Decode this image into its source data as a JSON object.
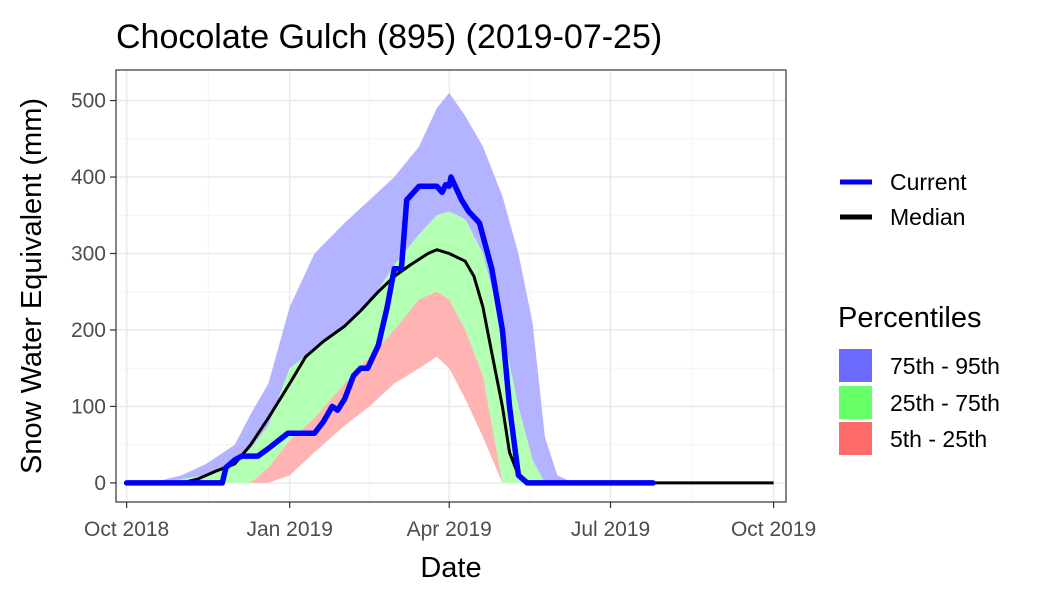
{
  "chart_data": {
    "type": "area",
    "title": "Chocolate Gulch (895) (2019-07-25)",
    "xlabel": "Date",
    "ylabel": "Snow Water Equivalent (mm)",
    "xlim": [
      "2018-09-25",
      "2019-10-08"
    ],
    "ylim": [
      -25,
      540
    ],
    "x_ticks": [
      "2018-10-01",
      "2019-01-01",
      "2019-04-01",
      "2019-07-01",
      "2019-10-01"
    ],
    "x_tick_labels": [
      "Oct 2018",
      "Jan 2019",
      "Apr 2019",
      "Jul 2019",
      "Oct 2019"
    ],
    "y_ticks": [
      0,
      100,
      200,
      300,
      400,
      500
    ],
    "y_tick_labels": [
      "0",
      "100",
      "200",
      "300",
      "400",
      "500"
    ],
    "grid": true,
    "legend_position": "right",
    "colors": {
      "current": "#0000ff",
      "median": "#000000",
      "p75_95": "#6b6bff",
      "p25_75": "#66ff66",
      "p5_25": "#ff6b6b",
      "band_75_95": "#b3b3ff",
      "band_25_75": "#b3ffb3",
      "band_5_25": "#ffb3b3"
    },
    "legend_lines": [
      {
        "key": "current",
        "label": "Current"
      },
      {
        "key": "median",
        "label": "Median"
      }
    ],
    "legend_title": "Percentiles",
    "legend_fills": [
      {
        "key": "p75_95",
        "label": "75th - 95th"
      },
      {
        "key": "p25_75",
        "label": "25th - 75th"
      },
      {
        "key": "p5_25",
        "label": "5th - 25th"
      }
    ],
    "percentile_bands": {
      "dates": [
        "2018-10-01",
        "2018-10-15",
        "2018-11-01",
        "2018-11-15",
        "2018-12-01",
        "2018-12-10",
        "2018-12-20",
        "2019-01-01",
        "2019-01-15",
        "2019-02-01",
        "2019-02-15",
        "2019-03-01",
        "2019-03-15",
        "2019-03-25",
        "2019-04-01",
        "2019-04-10",
        "2019-04-20",
        "2019-05-01",
        "2019-05-10",
        "2019-05-18",
        "2019-05-25",
        "2019-06-01",
        "2019-06-10"
      ],
      "p5": [
        0,
        0,
        0,
        0,
        0,
        0,
        0,
        10,
        40,
        75,
        100,
        130,
        150,
        165,
        150,
        110,
        60,
        0,
        0,
        0,
        0,
        0,
        0
      ],
      "p25": [
        0,
        0,
        0,
        0,
        0,
        0,
        20,
        55,
        85,
        130,
        165,
        200,
        240,
        250,
        240,
        200,
        140,
        0,
        0,
        0,
        0,
        0,
        0
      ],
      "p75": [
        0,
        0,
        5,
        10,
        25,
        45,
        75,
        150,
        175,
        205,
        235,
        285,
        325,
        350,
        355,
        345,
        300,
        200,
        100,
        30,
        0,
        0,
        0
      ],
      "p95": [
        0,
        0,
        10,
        25,
        50,
        90,
        130,
        230,
        300,
        340,
        370,
        400,
        440,
        490,
        510,
        480,
        440,
        375,
        300,
        210,
        60,
        10,
        0
      ]
    },
    "series": [
      {
        "name": "Current",
        "x": [
          "2018-10-01",
          "2018-11-01",
          "2018-11-15",
          "2018-11-24",
          "2018-11-26",
          "2018-12-01",
          "2018-12-05",
          "2018-12-14",
          "2018-12-20",
          "2018-12-31",
          "2019-01-01",
          "2019-01-15",
          "2019-01-20",
          "2019-01-25",
          "2019-01-28",
          "2019-02-01",
          "2019-02-06",
          "2019-02-10",
          "2019-02-14",
          "2019-02-20",
          "2019-02-25",
          "2019-03-01",
          "2019-03-05",
          "2019-03-08",
          "2019-03-15",
          "2019-03-25",
          "2019-03-28",
          "2019-03-30",
          "2019-04-01",
          "2019-04-02",
          "2019-04-05",
          "2019-04-08",
          "2019-04-12",
          "2019-04-18",
          "2019-04-25",
          "2019-05-01",
          "2019-05-05",
          "2019-05-10",
          "2019-05-15",
          "2019-06-01",
          "2019-07-01",
          "2019-07-25"
        ],
        "y": [
          0,
          0,
          0,
          0,
          20,
          30,
          35,
          35,
          45,
          65,
          65,
          65,
          80,
          100,
          95,
          110,
          140,
          150,
          150,
          180,
          230,
          280,
          280,
          370,
          388,
          388,
          380,
          390,
          388,
          400,
          385,
          370,
          355,
          340,
          280,
          200,
          100,
          10,
          0,
          0,
          0,
          0
        ]
      },
      {
        "name": "Median",
        "x": [
          "2018-10-01",
          "2018-11-01",
          "2018-11-10",
          "2018-11-20",
          "2018-12-01",
          "2018-12-10",
          "2018-12-20",
          "2019-01-01",
          "2019-01-10",
          "2019-01-20",
          "2019-02-01",
          "2019-02-10",
          "2019-02-20",
          "2019-03-01",
          "2019-03-10",
          "2019-03-20",
          "2019-03-25",
          "2019-04-01",
          "2019-04-10",
          "2019-04-15",
          "2019-04-20",
          "2019-04-25",
          "2019-05-01",
          "2019-05-05",
          "2019-05-10",
          "2019-05-15",
          "2019-06-01",
          "2019-07-01",
          "2019-10-01"
        ],
        "y": [
          0,
          0,
          5,
          15,
          25,
          50,
          85,
          130,
          165,
          185,
          205,
          225,
          250,
          270,
          285,
          300,
          305,
          300,
          290,
          270,
          230,
          170,
          100,
          40,
          10,
          0,
          0,
          0,
          0
        ]
      }
    ]
  }
}
